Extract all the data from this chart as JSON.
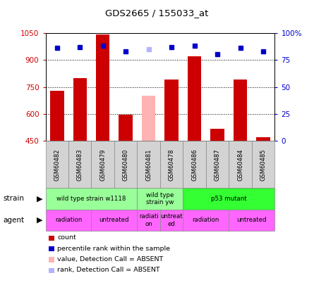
{
  "title": "GDS2665 / 155033_at",
  "samples": [
    "GSM60482",
    "GSM60483",
    "GSM60479",
    "GSM60480",
    "GSM60481",
    "GSM60478",
    "GSM60486",
    "GSM60487",
    "GSM60484",
    "GSM60485"
  ],
  "counts": [
    730,
    800,
    1040,
    595,
    700,
    790,
    920,
    520,
    790,
    470
  ],
  "absent_count": [
    null,
    null,
    null,
    null,
    700,
    null,
    null,
    null,
    null,
    null
  ],
  "percentile_ranks": [
    86,
    87,
    88,
    83,
    null,
    87,
    88,
    80,
    86,
    83
  ],
  "absent_rank": [
    null,
    null,
    null,
    null,
    85,
    null,
    null,
    null,
    null,
    null
  ],
  "bar_color": "#cc0000",
  "absent_bar_color": "#ffb3b3",
  "rank_color": "#0000cc",
  "absent_rank_color": "#b3b3ff",
  "ylim_left": [
    450,
    1050
  ],
  "ylim_right": [
    0,
    100
  ],
  "yticks_left": [
    450,
    600,
    750,
    900,
    1050
  ],
  "yticks_right": [
    0,
    25,
    50,
    75,
    100
  ],
  "strain_groups": [
    {
      "label": "wild type strain w1118",
      "start": 0,
      "end": 4,
      "color": "#99ff99"
    },
    {
      "label": "wild type\nstrain yw",
      "start": 4,
      "end": 6,
      "color": "#99ff99"
    },
    {
      "label": "p53 mutant",
      "start": 6,
      "end": 10,
      "color": "#33ff33"
    }
  ],
  "agent_groups": [
    {
      "label": "radiation",
      "start": 0,
      "end": 2,
      "color": "#ff66ff"
    },
    {
      "label": "untreated",
      "start": 2,
      "end": 4,
      "color": "#ff66ff"
    },
    {
      "label": "radiati\non",
      "start": 4,
      "end": 5,
      "color": "#ff66ff"
    },
    {
      "label": "untreat\ned",
      "start": 5,
      "end": 6,
      "color": "#ff66ff"
    },
    {
      "label": "radiation",
      "start": 6,
      "end": 8,
      "color": "#ff66ff"
    },
    {
      "label": "untreated",
      "start": 8,
      "end": 10,
      "color": "#ff66ff"
    }
  ],
  "legend_items": [
    {
      "label": "count",
      "color": "#cc0000"
    },
    {
      "label": "percentile rank within the sample",
      "color": "#0000cc"
    },
    {
      "label": "value, Detection Call = ABSENT",
      "color": "#ffb3b3"
    },
    {
      "label": "rank, Detection Call = ABSENT",
      "color": "#b3b3ff"
    }
  ],
  "sample_box_color": "#d3d3d3",
  "fig_width": 4.45,
  "fig_height": 4.05,
  "dpi": 100
}
